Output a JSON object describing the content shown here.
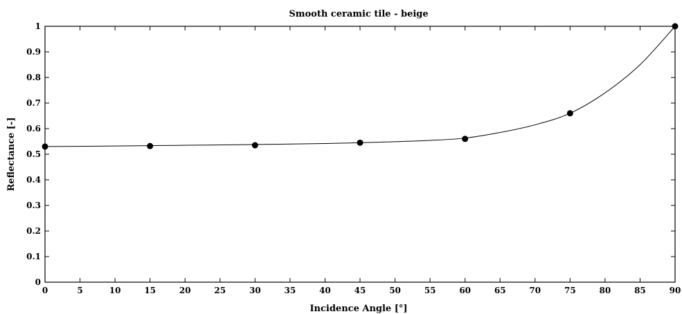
{
  "chart_data": {
    "type": "scatter",
    "title": "Smooth ceramic tile - beige",
    "xlabel": "Incidence Angle [°]",
    "ylabel": "Reflectance [-]",
    "xlim": [
      0,
      90
    ],
    "ylim": [
      0,
      1
    ],
    "xticks": [
      0,
      5,
      10,
      15,
      20,
      25,
      30,
      35,
      40,
      45,
      50,
      55,
      60,
      65,
      70,
      75,
      80,
      85,
      90
    ],
    "yticks": [
      0,
      0.1,
      0.2,
      0.3,
      0.4,
      0.5,
      0.6,
      0.7,
      0.8,
      0.9,
      1
    ],
    "xtick_labels": [
      "0",
      "5",
      "10",
      "15",
      "20",
      "25",
      "30",
      "35",
      "40",
      "45",
      "50",
      "55",
      "60",
      "65",
      "70",
      "75",
      "80",
      "85",
      "90"
    ],
    "ytick_labels": [
      "0",
      "0.1",
      "0.2",
      "0.3",
      "0.4",
      "0.5",
      "0.6",
      "0.7",
      "0.8",
      "0.9",
      "1"
    ],
    "grid": false,
    "points": {
      "x": [
        0,
        15,
        30,
        45,
        60,
        75,
        90
      ],
      "y": [
        0.53,
        0.532,
        0.535,
        0.545,
        0.56,
        0.66,
        1.0
      ]
    },
    "fit_curve": {
      "x": [
        0,
        10,
        20,
        30,
        40,
        45,
        50,
        55,
        60,
        65,
        70,
        75,
        80,
        85,
        90
      ],
      "y": [
        0.53,
        0.532,
        0.535,
        0.538,
        0.542,
        0.545,
        0.549,
        0.554,
        0.563,
        0.585,
        0.615,
        0.66,
        0.74,
        0.85,
        1.0
      ]
    },
    "colors": {
      "marker": "#000000",
      "line": "#000000",
      "axes": "#000000"
    }
  }
}
